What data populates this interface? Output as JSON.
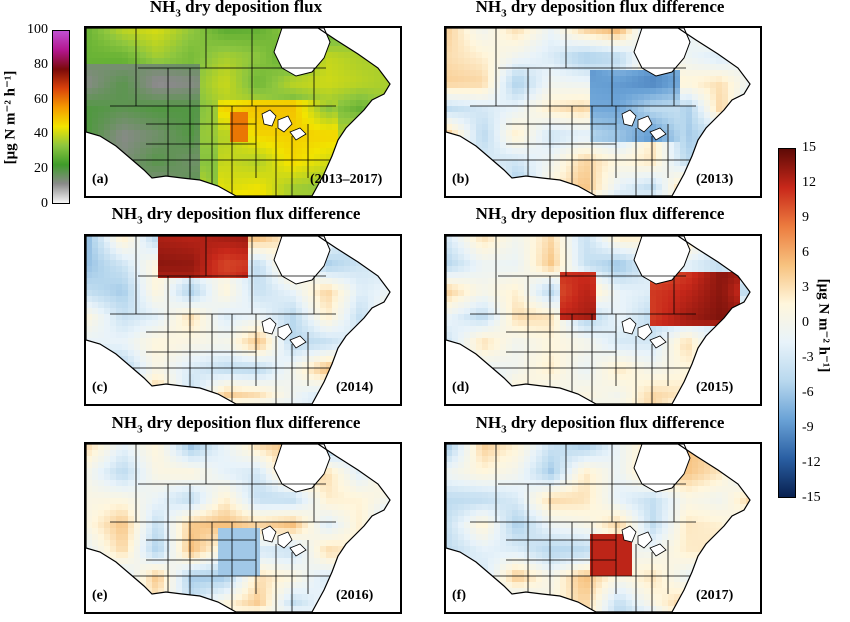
{
  "figure": {
    "flux_title_main": "NH",
    "flux_title_sub": "3",
    "flux_title_rest": " dry deposition flux",
    "diff_title_main": "NH",
    "diff_title_sub": "3",
    "diff_title_rest": " dry deposition flux difference"
  },
  "panels": [
    {
      "label": "(a)",
      "period": "(2013–2017)"
    },
    {
      "label": "(b)",
      "period": "(2013)"
    },
    {
      "label": "(c)",
      "period": "(2014)"
    },
    {
      "label": "(d)",
      "period": "(2015)"
    },
    {
      "label": "(e)",
      "period": "(2016)"
    },
    {
      "label": "(f)",
      "period": "(2017)"
    }
  ],
  "colorbars": {
    "flux": {
      "ticks": [
        "100",
        "80",
        "60",
        "40",
        "20",
        "0"
      ],
      "unit": "[μg N m⁻² h⁻¹]",
      "range": [
        0,
        100
      ],
      "colors": [
        "#f6f6f6",
        "#8a8a8a",
        "#3f9c2a",
        "#8dc63f",
        "#f2e400",
        "#f59b00",
        "#d9420b",
        "#7a0a0a",
        "#b3168f",
        "#c04fd1"
      ]
    },
    "diff": {
      "ticks": [
        "15",
        "12",
        "9",
        "6",
        "3",
        "0",
        "-3",
        "-6",
        "-9",
        "-12",
        "-15"
      ],
      "unit": "[μg N m⁻² h⁻¹]",
      "range": [
        -15,
        15
      ],
      "colors": [
        "#08204f",
        "#2a5fa3",
        "#6aa2d6",
        "#b8d8ee",
        "#e8f3fa",
        "#fff6dc",
        "#f7c27f",
        "#ec7c3f",
        "#c8281a",
        "#5e0a06"
      ]
    }
  },
  "chart_data": [
    {
      "type": "heatmap",
      "title": "NH3 dry deposition flux",
      "panel": "(a)",
      "period": "(2013–2017)",
      "range": [
        0,
        100
      ],
      "unit": "[μg N m-2 h-1]"
    },
    {
      "type": "heatmap",
      "title": "NH3 dry deposition flux difference",
      "panel": "(b)",
      "period": "(2013)",
      "range": [
        -15,
        15
      ],
      "unit": "[μg N m-2 h-1]"
    },
    {
      "type": "heatmap",
      "title": "NH3 dry deposition flux difference",
      "panel": "(c)",
      "period": "(2014)",
      "range": [
        -15,
        15
      ],
      "unit": "[μg N m-2 h-1]"
    },
    {
      "type": "heatmap",
      "title": "NH3 dry deposition flux difference",
      "panel": "(d)",
      "period": "(2015)",
      "range": [
        -15,
        15
      ],
      "unit": "[μg N m-2 h-1]"
    },
    {
      "type": "heatmap",
      "title": "NH3 dry deposition flux difference",
      "panel": "(e)",
      "period": "(2016)",
      "range": [
        -15,
        15
      ],
      "unit": "[μg N m-2 h-1]"
    },
    {
      "type": "heatmap",
      "title": "NH3 dry deposition flux difference",
      "panel": "(f)",
      "period": "(2017)",
      "range": [
        -15,
        15
      ],
      "unit": "[μg N m-2 h-1]"
    }
  ]
}
